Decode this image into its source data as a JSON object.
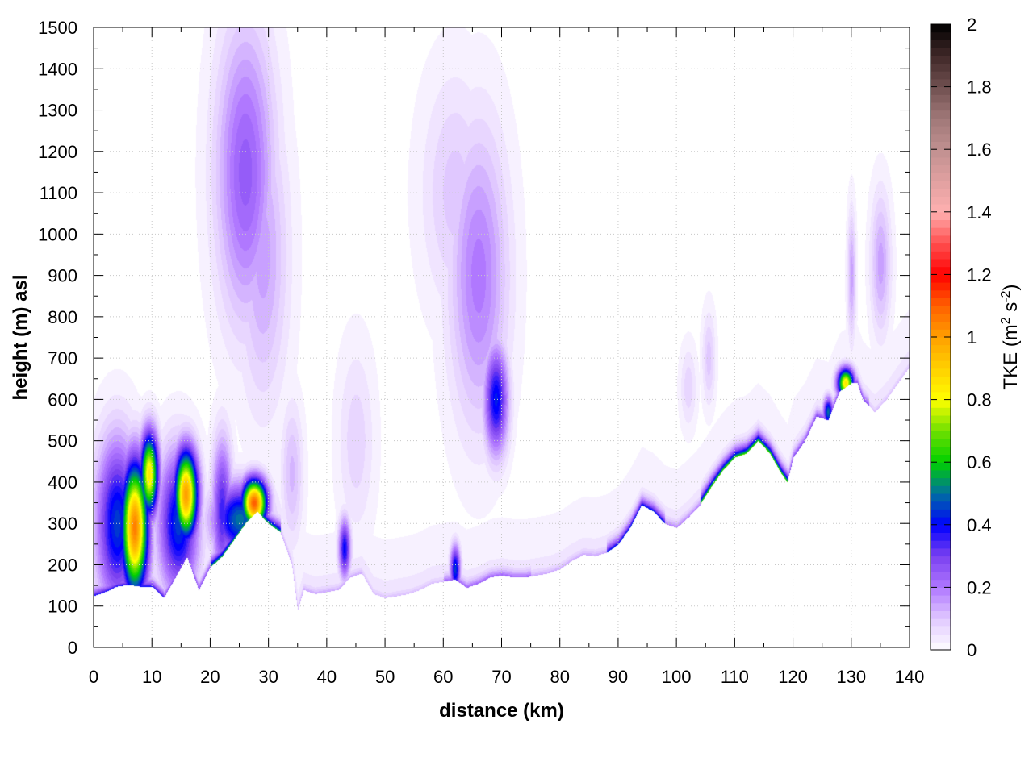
{
  "chart_data": {
    "type": "heatmap",
    "title": "",
    "xlabel": "distance (km)",
    "ylabel": "height (m) asl",
    "xlim": [
      0,
      140
    ],
    "ylim": [
      0,
      1500
    ],
    "x_ticks": [
      0,
      10,
      20,
      30,
      40,
      50,
      60,
      70,
      80,
      90,
      100,
      110,
      120,
      130,
      140
    ],
    "y_ticks": [
      0,
      100,
      200,
      300,
      400,
      500,
      600,
      700,
      800,
      900,
      1000,
      1100,
      1200,
      1300,
      1400,
      1500
    ],
    "grid": true,
    "colorbar": {
      "label_prefix": "TKE (m",
      "label_sup1": "2",
      "label_mid": " s",
      "label_sup2": "-2",
      "label_suffix": ")",
      "range": [
        0,
        2
      ],
      "ticks": [
        0,
        0.2,
        0.4,
        0.6,
        0.8,
        1,
        1.2,
        1.4,
        1.6,
        1.8,
        2
      ],
      "tick_labels": [
        "0",
        "0.2",
        "0.4",
        "0.6",
        "0.8",
        "1",
        "1.2",
        "1.4",
        "1.6",
        "1.8",
        "2"
      ],
      "stops": [
        {
          "v": 0.0,
          "color": "#ffffff"
        },
        {
          "v": 0.1,
          "color": "#e0c8ff"
        },
        {
          "v": 0.2,
          "color": "#b078ff"
        },
        {
          "v": 0.3,
          "color": "#7a40f0"
        },
        {
          "v": 0.4,
          "color": "#0000ff"
        },
        {
          "v": 0.5,
          "color": "#0070a0"
        },
        {
          "v": 0.6,
          "color": "#00d000"
        },
        {
          "v": 0.7,
          "color": "#70e000"
        },
        {
          "v": 0.8,
          "color": "#ffff00"
        },
        {
          "v": 0.9,
          "color": "#ffd000"
        },
        {
          "v": 1.0,
          "color": "#ffa000"
        },
        {
          "v": 1.1,
          "color": "#ff6000"
        },
        {
          "v": 1.2,
          "color": "#ff0000"
        },
        {
          "v": 1.3,
          "color": "#ff5050"
        },
        {
          "v": 1.4,
          "color": "#ffb0b0"
        },
        {
          "v": 1.5,
          "color": "#e0a0a0"
        },
        {
          "v": 1.6,
          "color": "#c09090"
        },
        {
          "v": 1.7,
          "color": "#a07878"
        },
        {
          "v": 1.8,
          "color": "#705050"
        },
        {
          "v": 1.9,
          "color": "#402828"
        },
        {
          "v": 2.0,
          "color": "#000000"
        }
      ]
    },
    "terrain": [
      [
        0,
        125
      ],
      [
        2,
        135
      ],
      [
        4,
        148
      ],
      [
        6,
        152
      ],
      [
        8,
        148
      ],
      [
        10,
        148
      ],
      [
        12,
        120
      ],
      [
        14,
        170
      ],
      [
        16,
        220
      ],
      [
        18,
        140
      ],
      [
        20,
        195
      ],
      [
        22,
        220
      ],
      [
        24,
        260
      ],
      [
        26,
        300
      ],
      [
        28,
        330
      ],
      [
        30,
        300
      ],
      [
        32,
        280
      ],
      [
        34,
        200
      ],
      [
        35,
        90
      ],
      [
        36,
        140
      ],
      [
        38,
        130
      ],
      [
        40,
        135
      ],
      [
        42,
        140
      ],
      [
        44,
        170
      ],
      [
        46,
        180
      ],
      [
        48,
        130
      ],
      [
        50,
        120
      ],
      [
        52,
        125
      ],
      [
        54,
        130
      ],
      [
        56,
        140
      ],
      [
        58,
        155
      ],
      [
        60,
        160
      ],
      [
        62,
        165
      ],
      [
        64,
        145
      ],
      [
        66,
        155
      ],
      [
        68,
        170
      ],
      [
        70,
        175
      ],
      [
        72,
        170
      ],
      [
        74,
        170
      ],
      [
        76,
        175
      ],
      [
        78,
        180
      ],
      [
        80,
        190
      ],
      [
        82,
        210
      ],
      [
        84,
        225
      ],
      [
        86,
        222
      ],
      [
        88,
        230
      ],
      [
        90,
        250
      ],
      [
        92,
        290
      ],
      [
        94,
        345
      ],
      [
        96,
        330
      ],
      [
        98,
        300
      ],
      [
        100,
        290
      ],
      [
        102,
        315
      ],
      [
        104,
        345
      ],
      [
        106,
        390
      ],
      [
        108,
        430
      ],
      [
        110,
        460
      ],
      [
        112,
        470
      ],
      [
        114,
        500
      ],
      [
        116,
        470
      ],
      [
        118,
        420
      ],
      [
        119,
        400
      ],
      [
        120,
        460
      ],
      [
        122,
        500
      ],
      [
        124,
        560
      ],
      [
        126,
        550
      ],
      [
        128,
        620
      ],
      [
        130,
        640
      ],
      [
        131,
        640
      ],
      [
        132,
        600
      ],
      [
        134,
        570
      ],
      [
        136,
        600
      ],
      [
        138,
        640
      ],
      [
        140,
        680
      ]
    ],
    "blobs": [
      {
        "x": 7,
        "y": 290,
        "sx": 1.6,
        "sy": 110,
        "v": 1.05
      },
      {
        "x": 9.5,
        "y": 420,
        "sx": 1.1,
        "sy": 70,
        "v": 0.85
      },
      {
        "x": 4,
        "y": 300,
        "sx": 2.5,
        "sy": 140,
        "v": 0.45
      },
      {
        "x": 15.8,
        "y": 370,
        "sx": 1.4,
        "sy": 75,
        "v": 1.0
      },
      {
        "x": 14.5,
        "y": 300,
        "sx": 2.4,
        "sy": 120,
        "v": 0.45
      },
      {
        "x": 27.5,
        "y": 350,
        "sx": 1.5,
        "sy": 40,
        "v": 1.1
      },
      {
        "x": 25,
        "y": 310,
        "sx": 3.2,
        "sy": 60,
        "v": 0.5
      },
      {
        "x": 22,
        "y": 330,
        "sx": 1.2,
        "sy": 120,
        "v": 0.35
      },
      {
        "x": 26,
        "y": 1150,
        "sx": 3.5,
        "sy": 250,
        "v": 0.25
      },
      {
        "x": 29,
        "y": 950,
        "sx": 3,
        "sy": 250,
        "v": 0.15
      },
      {
        "x": 34,
        "y": 420,
        "sx": 1.3,
        "sy": 120,
        "v": 0.12
      },
      {
        "x": 43,
        "y": 240,
        "sx": 0.7,
        "sy": 50,
        "v": 0.4
      },
      {
        "x": 45,
        "y": 500,
        "sx": 2.2,
        "sy": 160,
        "v": 0.08
      },
      {
        "x": 62,
        "y": 190,
        "sx": 0.6,
        "sy": 40,
        "v": 0.45
      },
      {
        "x": 66,
        "y": 900,
        "sx": 3.5,
        "sy": 250,
        "v": 0.2
      },
      {
        "x": 69,
        "y": 600,
        "sx": 1.4,
        "sy": 90,
        "v": 0.42
      },
      {
        "x": 62,
        "y": 1100,
        "sx": 4,
        "sy": 200,
        "v": 0.1
      },
      {
        "x": 102,
        "y": 630,
        "sx": 1,
        "sy": 70,
        "v": 0.08
      },
      {
        "x": 105.5,
        "y": 700,
        "sx": 0.8,
        "sy": 80,
        "v": 0.1
      },
      {
        "x": 126,
        "y": 570,
        "sx": 0.6,
        "sy": 25,
        "v": 0.5
      },
      {
        "x": 129,
        "y": 640,
        "sx": 1,
        "sy": 25,
        "v": 0.85
      },
      {
        "x": 130,
        "y": 900,
        "sx": 0.5,
        "sy": 110,
        "v": 0.15
      },
      {
        "x": 135,
        "y": 930,
        "sx": 1.2,
        "sy": 120,
        "v": 0.15
      }
    ],
    "surface_layer": [
      {
        "x0": 0,
        "x1": 12,
        "v": 0.4
      },
      {
        "x0": 12,
        "x1": 20,
        "v": 0.3
      },
      {
        "x0": 20,
        "x1": 32,
        "v": 0.6
      },
      {
        "x0": 32,
        "x1": 46,
        "v": 0.15
      },
      {
        "x0": 46,
        "x1": 60,
        "v": 0.12
      },
      {
        "x0": 60,
        "x1": 75,
        "v": 0.25
      },
      {
        "x0": 75,
        "x1": 88,
        "v": 0.15
      },
      {
        "x0": 88,
        "x1": 98,
        "v": 0.45
      },
      {
        "x0": 98,
        "x1": 104,
        "v": 0.2
      },
      {
        "x0": 104,
        "x1": 119,
        "v": 0.7
      },
      {
        "x0": 119,
        "x1": 133,
        "v": 0.3
      },
      {
        "x0": 133,
        "x1": 140,
        "v": 0.12
      }
    ]
  }
}
